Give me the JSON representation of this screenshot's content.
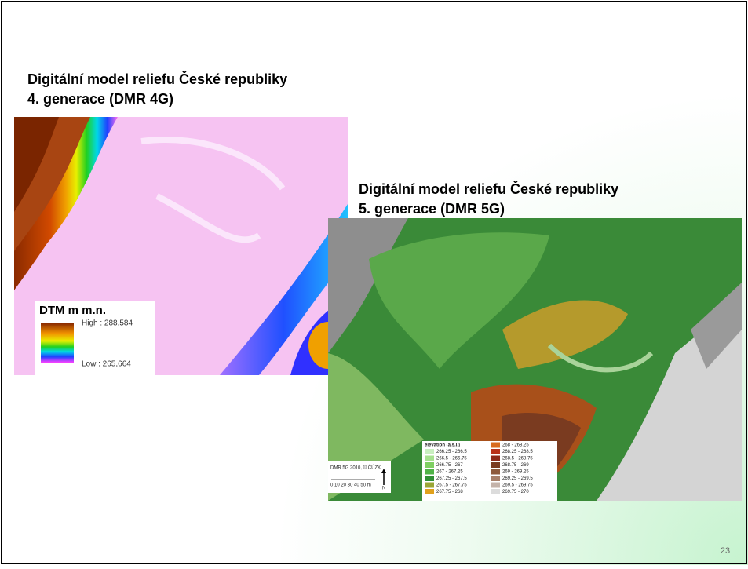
{
  "slide": {
    "number": "23"
  },
  "dmr4g": {
    "title_line1": "Digitální model reliefu České republiky",
    "title_line2": "4. generace (DMR 4G)",
    "legend": {
      "title": "DTM m m.n.",
      "high": "High : 288,584",
      "low": "Low : 265,664"
    }
  },
  "dmr5g": {
    "title_line1": "Digitální model reliefu České republiky",
    "title_line2": "5. generace (DMR 5G)",
    "legend": {
      "title": "elevation (a.s.l.)",
      "items": [
        {
          "label": "266.25 - 266.5",
          "color": "#c9efc0"
        },
        {
          "label": "266.5 - 266.75",
          "color": "#a6e08f"
        },
        {
          "label": "266.75 - 267",
          "color": "#7fcf63"
        },
        {
          "label": "267 - 267.25",
          "color": "#4fb347"
        },
        {
          "label": "267.25 - 267.5",
          "color": "#2f8f35"
        },
        {
          "label": "267.5 - 267.75",
          "color": "#9aa636"
        },
        {
          "label": "267.75 - 268",
          "color": "#e0a11c"
        },
        {
          "label": "268 - 268.25",
          "color": "#d86b1e"
        },
        {
          "label": "268.25 - 268.5",
          "color": "#b8321a"
        },
        {
          "label": "268.5 - 268.75",
          "color": "#8c2a1a"
        },
        {
          "label": "268.75 - 269",
          "color": "#7a3b20"
        },
        {
          "label": "269 - 269.25",
          "color": "#8e5a3c"
        },
        {
          "label": "269.25 - 269.5",
          "color": "#a8806a"
        },
        {
          "label": "269.5 - 269.75",
          "color": "#c4b3aa"
        },
        {
          "label": "269.75 - 270",
          "color": "#dcdcdc"
        }
      ]
    },
    "scale": {
      "source": "DMR 5G 2010, © ČÚZK",
      "ticks": "0  10  20  30  40  50 m",
      "north": "N"
    }
  }
}
